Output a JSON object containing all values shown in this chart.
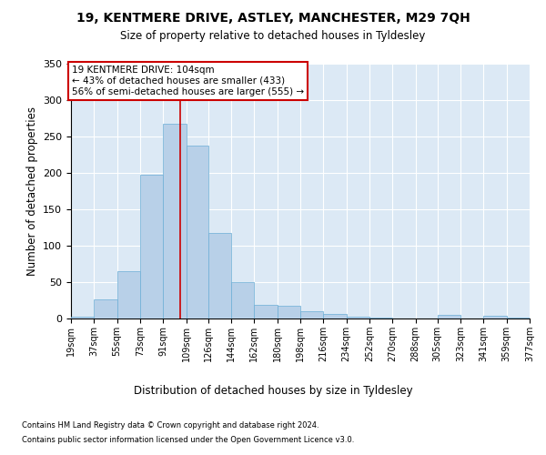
{
  "title1": "19, KENTMERE DRIVE, ASTLEY, MANCHESTER, M29 7QH",
  "title2": "Size of property relative to detached houses in Tyldesley",
  "xlabel": "Distribution of detached houses by size in Tyldesley",
  "ylabel": "Number of detached properties",
  "bar_heights": [
    2,
    26,
    65,
    198,
    267,
    238,
    117,
    50,
    19,
    18,
    10,
    6,
    2,
    1,
    0,
    0,
    5,
    0,
    4,
    1
  ],
  "bin_edges": [
    19,
    37,
    55,
    73,
    91,
    109,
    126,
    144,
    162,
    180,
    198,
    216,
    234,
    252,
    270,
    288,
    305,
    323,
    341,
    359,
    377
  ],
  "xtick_labels": [
    "19sqm",
    "37sqm",
    "55sqm",
    "73sqm",
    "91sqm",
    "109sqm",
    "126sqm",
    "144sqm",
    "162sqm",
    "180sqm",
    "198sqm",
    "216sqm",
    "234sqm",
    "252sqm",
    "270sqm",
    "288sqm",
    "305sqm",
    "323sqm",
    "341sqm",
    "359sqm",
    "377sqm"
  ],
  "vline_x": 104,
  "annotation_line1": "19 KENTMERE DRIVE: 104sqm",
  "annotation_line2": "← 43% of detached houses are smaller (433)",
  "annotation_line3": "56% of semi-detached houses are larger (555) →",
  "bar_color": "#b8d0e8",
  "bar_edge_color": "#6baed6",
  "vline_color": "#cc0000",
  "annotation_box_color": "#ffffff",
  "annotation_box_edge": "#cc0000",
  "ylim": [
    0,
    350
  ],
  "yticks": [
    0,
    50,
    100,
    150,
    200,
    250,
    300,
    350
  ],
  "plot_background": "#dce9f5",
  "footer1": "Contains HM Land Registry data © Crown copyright and database right 2024.",
  "footer2": "Contains public sector information licensed under the Open Government Licence v3.0."
}
